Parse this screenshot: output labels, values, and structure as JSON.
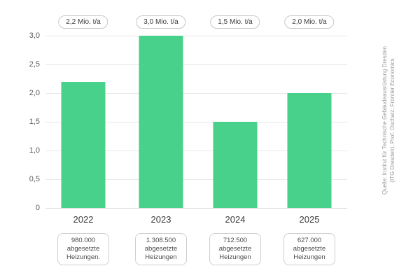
{
  "chart_data": {
    "type": "bar",
    "title": "",
    "categories": [
      "2022",
      "2023",
      "2024",
      "2025"
    ],
    "values": [
      2.2,
      3.0,
      1.5,
      2.0
    ],
    "unit": "Mio. t/a",
    "annotations": [
      "2,2 Mio. t/a",
      "3,0 Mio. t/a",
      "1,5 Mio. t/a",
      "2,0 Mio. t/a"
    ],
    "y_ticks": [
      "3,0",
      "2,5",
      "2,0",
      "1,5",
      "1,0",
      "0,5",
      "0"
    ],
    "ylim": [
      0,
      3.0
    ],
    "grid": true,
    "legend": "none",
    "bar_color": "#47d18b",
    "footnotes": [
      {
        "line1": "980.000",
        "line2": "abgesetzte",
        "line3": "Heizungen."
      },
      {
        "line1": "1.308.500",
        "line2": "abgesetzte",
        "line3": "Heizungen"
      },
      {
        "line1": "712.500",
        "line2": "abgesetzte",
        "line3": "Heizungen"
      },
      {
        "line1": "627.000",
        "line2": "abgesetzte",
        "line3": "Heizungen"
      }
    ]
  },
  "source": {
    "line1": "Quelle: Institut für Technische Gebäudeausrüstung Dresden",
    "line2": "(ITG Dresden), Prof. Oschatz; Frontier Economics"
  }
}
